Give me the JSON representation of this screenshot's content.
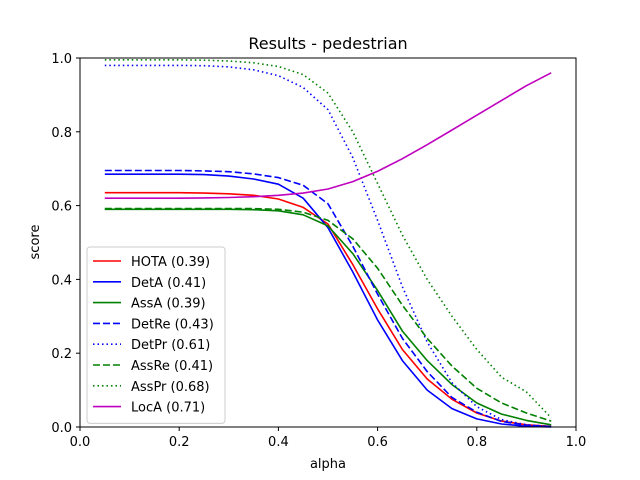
{
  "chart_data": {
    "type": "line",
    "title": "Results - pedestrian",
    "xlabel": "alpha",
    "ylabel": "score",
    "xlim": [
      0.0,
      1.0
    ],
    "ylim": [
      0.0,
      1.0
    ],
    "xticks": [
      "0.0",
      "0.2",
      "0.4",
      "0.6",
      "0.8",
      "1.0"
    ],
    "yticks": [
      "0.0",
      "0.2",
      "0.4",
      "0.6",
      "0.8",
      "1.0"
    ],
    "grid": false,
    "legend_position": "lower-left",
    "x": [
      0.05,
      0.1,
      0.15,
      0.2,
      0.25,
      0.3,
      0.35,
      0.4,
      0.45,
      0.5,
      0.55,
      0.6,
      0.65,
      0.7,
      0.75,
      0.8,
      0.85,
      0.9,
      0.95
    ],
    "series": [
      {
        "name": "HOTA (0.39)",
        "color": "#ff0000",
        "style": "solid",
        "values": [
          0.635,
          0.635,
          0.635,
          0.635,
          0.634,
          0.632,
          0.628,
          0.618,
          0.595,
          0.55,
          0.44,
          0.32,
          0.21,
          0.13,
          0.075,
          0.038,
          0.016,
          0.006,
          0.002
        ]
      },
      {
        "name": "DetA (0.41)",
        "color": "#0000ff",
        "style": "solid",
        "values": [
          0.685,
          0.685,
          0.685,
          0.685,
          0.684,
          0.68,
          0.672,
          0.658,
          0.62,
          0.54,
          0.42,
          0.29,
          0.18,
          0.1,
          0.05,
          0.022,
          0.008,
          0.002,
          0.0
        ]
      },
      {
        "name": "AssA (0.39)",
        "color": "#008000",
        "style": "solid",
        "values": [
          0.59,
          0.59,
          0.59,
          0.59,
          0.59,
          0.59,
          0.589,
          0.586,
          0.575,
          0.545,
          0.47,
          0.37,
          0.26,
          0.18,
          0.115,
          0.065,
          0.035,
          0.018,
          0.006
        ]
      },
      {
        "name": "DetRe (0.43)",
        "color": "#0000ff",
        "style": "dashed",
        "values": [
          0.695,
          0.695,
          0.695,
          0.695,
          0.694,
          0.692,
          0.686,
          0.676,
          0.655,
          0.605,
          0.49,
          0.36,
          0.24,
          0.15,
          0.08,
          0.04,
          0.015,
          0.005,
          0.001
        ]
      },
      {
        "name": "DetPr (0.61)",
        "color": "#0000ff",
        "style": "dotted",
        "values": [
          0.98,
          0.98,
          0.98,
          0.98,
          0.979,
          0.976,
          0.968,
          0.952,
          0.92,
          0.86,
          0.73,
          0.56,
          0.38,
          0.23,
          0.12,
          0.055,
          0.02,
          0.006,
          0.001
        ]
      },
      {
        "name": "AssRe (0.41)",
        "color": "#008000",
        "style": "dashed",
        "values": [
          0.592,
          0.592,
          0.592,
          0.592,
          0.592,
          0.592,
          0.592,
          0.59,
          0.582,
          0.56,
          0.51,
          0.43,
          0.33,
          0.24,
          0.165,
          0.105,
          0.065,
          0.038,
          0.016
        ]
      },
      {
        "name": "AssPr (0.68)",
        "color": "#008000",
        "style": "dotted",
        "values": [
          0.995,
          0.995,
          0.995,
          0.995,
          0.994,
          0.992,
          0.987,
          0.977,
          0.955,
          0.905,
          0.8,
          0.66,
          0.52,
          0.4,
          0.3,
          0.21,
          0.135,
          0.095,
          0.025
        ]
      },
      {
        "name": "LocA (0.71)",
        "color": "#bf00bf",
        "style": "solid",
        "values": [
          0.62,
          0.62,
          0.62,
          0.62,
          0.621,
          0.622,
          0.624,
          0.628,
          0.634,
          0.645,
          0.665,
          0.693,
          0.727,
          0.765,
          0.805,
          0.845,
          0.885,
          0.925,
          0.96
        ]
      }
    ]
  }
}
